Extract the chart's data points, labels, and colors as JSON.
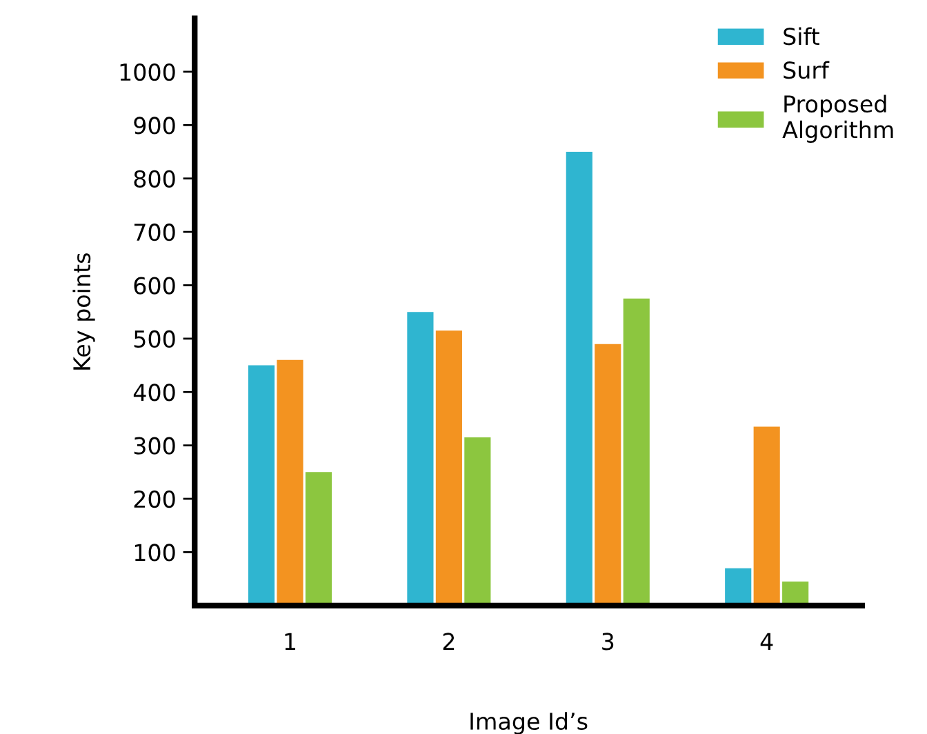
{
  "chart_data": {
    "type": "bar",
    "xlabel": "Image Id’s",
    "ylabel": "Key points",
    "categories": [
      "1",
      "2",
      "3",
      "4"
    ],
    "series": [
      {
        "name": "Sift",
        "color": "#2fb5d0",
        "values": [
          450,
          550,
          850,
          70
        ]
      },
      {
        "name": "Surf",
        "color": "#f39320",
        "values": [
          460,
          515,
          490,
          335
        ]
      },
      {
        "name": "Proposed Algorithm",
        "color": "#8cc63f",
        "values": [
          250,
          315,
          575,
          45
        ]
      }
    ],
    "ylim": [
      0,
      1100
    ],
    "yticks": [
      100,
      200,
      300,
      400,
      500,
      600,
      700,
      800,
      900,
      1000
    ],
    "grid": false,
    "legend": "top right"
  }
}
